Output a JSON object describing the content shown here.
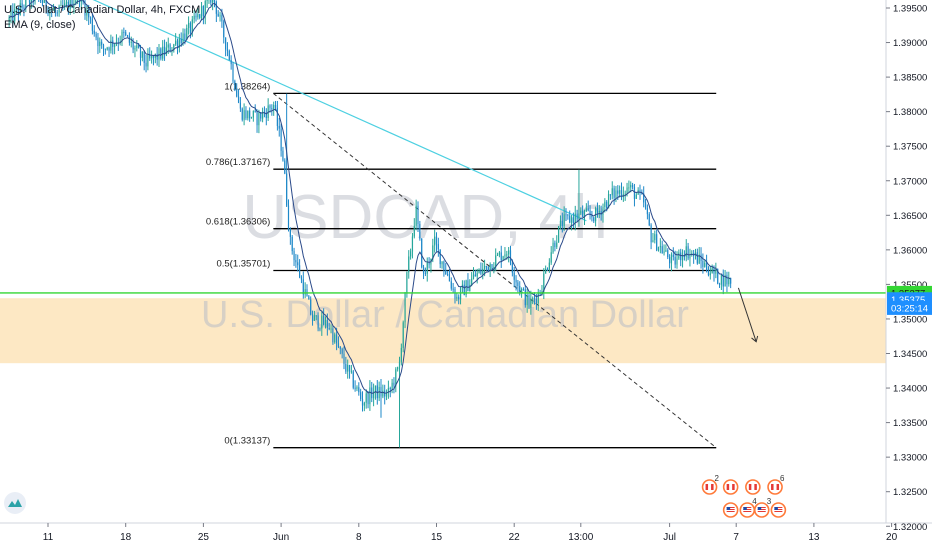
{
  "header": {
    "symbol_line": "U.S. Dollar / Canadian Dollar, 4h, FXCM",
    "indicator_line": "EMA (9, close)"
  },
  "watermark": {
    "ticker": "USDCAD, 4h",
    "name": "U.S. Dollar / Canadian Dollar"
  },
  "chart_data": {
    "type": "candlestick",
    "symbol": "USDCAD",
    "timeframe": "4h",
    "indicator": "EMA (9, close)",
    "ylim": [
      1.3175,
      1.397
    ],
    "y_ticks": [
      "1.39500",
      "1.39000",
      "1.38500",
      "1.38000",
      "1.37500",
      "1.37000",
      "1.36500",
      "1.36000",
      "1.35500",
      "1.35000",
      "1.34500",
      "1.34000",
      "1.33500",
      "1.33000",
      "1.32500",
      "1.32000"
    ],
    "x_ticks": [
      {
        "label": "11",
        "day": 0
      },
      {
        "label": "18",
        "day": 7
      },
      {
        "label": "25",
        "day": 14
      },
      {
        "label": "Jun",
        "day": 21
      },
      {
        "label": "8",
        "day": 28
      },
      {
        "label": "15",
        "day": 35
      },
      {
        "label": "22",
        "day": 42
      },
      {
        "label": "13:00",
        "day": 48
      },
      {
        "label": "Jul",
        "day": 56
      },
      {
        "label": "7",
        "day": 62
      },
      {
        "label": "13",
        "day": 69
      },
      {
        "label": "20",
        "day": 76
      }
    ],
    "price_path": [
      [
        -3.5,
        1.393
      ],
      [
        -1,
        1.397
      ],
      [
        1,
        1.394
      ],
      [
        3,
        1.397
      ],
      [
        5,
        1.389
      ],
      [
        7,
        1.391
      ],
      [
        9,
        1.387
      ],
      [
        11,
        1.389
      ],
      [
        13,
        1.392
      ],
      [
        15,
        1.397
      ],
      [
        16.5,
        1.388
      ],
      [
        17.5,
        1.38
      ],
      [
        19,
        1.379
      ],
      [
        20.5,
        1.381
      ],
      [
        21.3,
        1.374
      ],
      [
        22,
        1.361
      ],
      [
        23,
        1.3555
      ],
      [
        24,
        1.35
      ],
      [
        25.5,
        1.349
      ],
      [
        27,
        1.343
      ],
      [
        28.5,
        1.338
      ],
      [
        29.5,
        1.3395
      ],
      [
        30.8,
        1.339
      ],
      [
        31.8,
        1.343
      ],
      [
        32.5,
        1.356
      ],
      [
        33.3,
        1.366
      ],
      [
        34,
        1.356
      ],
      [
        35,
        1.361
      ],
      [
        36,
        1.357
      ],
      [
        37,
        1.353
      ],
      [
        38.5,
        1.356
      ],
      [
        40,
        1.358
      ],
      [
        41.5,
        1.36
      ],
      [
        42.5,
        1.355
      ],
      [
        43.5,
        1.352
      ],
      [
        44.5,
        1.354
      ],
      [
        45.5,
        1.36
      ],
      [
        46.5,
        1.364
      ],
      [
        48,
        1.365
      ],
      [
        49.5,
        1.365
      ],
      [
        51,
        1.368
      ],
      [
        52.5,
        1.369
      ],
      [
        53.8,
        1.367
      ],
      [
        54.5,
        1.362
      ],
      [
        55.5,
        1.36
      ],
      [
        56.5,
        1.358
      ],
      [
        57.5,
        1.36
      ],
      [
        58.5,
        1.359
      ],
      [
        59.5,
        1.3575
      ],
      [
        60.5,
        1.356
      ],
      [
        61.5,
        1.3555
      ]
    ],
    "key_spikes": [
      {
        "day": 30,
        "low": 1.3357
      },
      {
        "day": 31.7,
        "low": 1.3314
      },
      {
        "day": 21.5,
        "high": 1.3826
      },
      {
        "day": 47.9,
        "high": 1.3716
      }
    ],
    "fibonacci": {
      "start_day": 20.3,
      "end_day": 60.2,
      "levels": [
        {
          "label": "1(1.38264)",
          "price": 1.38264
        },
        {
          "label": "0.786(1.37167)",
          "price": 1.37167
        },
        {
          "label": "0.618(1.36306)",
          "price": 1.36306
        },
        {
          "label": "0.5(1.35701)",
          "price": 1.35701
        },
        {
          "label": "0(1.33137)",
          "price": 1.33137
        }
      ],
      "diagonal": [
        [
          20.3,
          1.38264
        ],
        [
          60.2,
          1.33137
        ]
      ]
    },
    "trendline": [
      [
        -0.9,
        1.3998
      ],
      [
        48.5,
        1.3642
      ]
    ],
    "zone": {
      "top": 1.353,
      "bottom": 1.3436,
      "color": "#fde8c4"
    },
    "horizontal_line": {
      "price": 1.35377,
      "color": "#33d633"
    },
    "projection_arrow": [
      [
        62.2,
        1.3545
      ],
      [
        63.8,
        1.3467
      ]
    ],
    "price_labels": [
      {
        "text": "1.35377",
        "price": 1.35377,
        "bg": "#33d633",
        "fg": "#1a1a1a"
      },
      {
        "text": "1.35375",
        "price": 1.35285,
        "bg": "#1e8fff",
        "fg": "#ffffff"
      },
      {
        "text": "03:25:14",
        "price": 1.3516,
        "bg": "#1e8fff",
        "fg": "#ffffff"
      }
    ],
    "event_icons": {
      "top": [
        {
          "day": 59.6,
          "num": "2"
        },
        {
          "day": 61.5,
          "num": ""
        },
        {
          "day": 63.5,
          "num": ""
        },
        {
          "day": 65.5,
          "num": "6"
        }
      ],
      "bottom": [
        {
          "day": 61.5,
          "num": ""
        },
        {
          "day": 63.0,
          "num": "4"
        },
        {
          "day": 64.3,
          "num": "3"
        },
        {
          "day": 65.8,
          "num": ""
        }
      ]
    },
    "colors": {
      "up": "#26a69a",
      "down": "#1e88c8",
      "ema": "#2a4a8a",
      "trendline": "#4dd0e1",
      "fib": "#000000",
      "axis_text": "#131722"
    }
  }
}
